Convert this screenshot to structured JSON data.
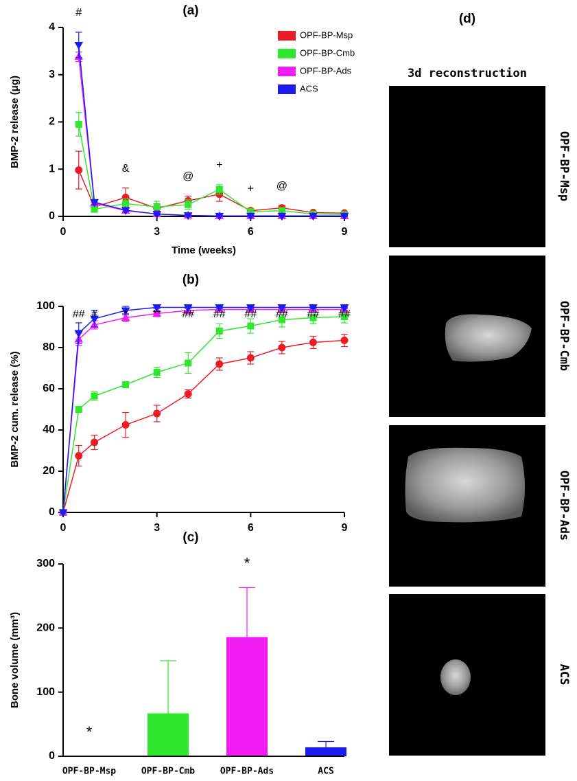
{
  "chart_data": [
    {
      "type": "line",
      "title": "(a)",
      "x_label": "Time (weeks)",
      "y_label": "BMP-2 release (μg)",
      "x": [
        0.5,
        1,
        2,
        3,
        4,
        5,
        6,
        7,
        8,
        9
      ],
      "xlim": [
        0,
        9
      ],
      "xticks": [
        0,
        3,
        6,
        9
      ],
      "ylim": [
        0,
        4
      ],
      "yticks": [
        0,
        1,
        2,
        3,
        4
      ],
      "legend": "upper right",
      "series": [
        {
          "name": "OPF-BP-Msp",
          "color": "#ec1c24",
          "marker": "circle",
          "values": [
            0.98,
            0.2,
            0.4,
            0.17,
            0.33,
            0.47,
            0.12,
            0.18,
            0.08,
            0.07
          ],
          "errors": [
            0.4,
            0.1,
            0.2,
            0.1,
            0.1,
            0.15,
            0.05,
            0.05,
            0.02,
            0.02
          ]
        },
        {
          "name": "OPF-BP-Cmb",
          "color": "#2ee82e",
          "marker": "square",
          "values": [
            1.95,
            0.15,
            0.27,
            0.2,
            0.25,
            0.57,
            0.1,
            0.12,
            0.05,
            0.04
          ],
          "errors": [
            0.25,
            0.05,
            0.1,
            0.12,
            0.1,
            0.1,
            0.05,
            0.05,
            0.02,
            0.02
          ]
        },
        {
          "name": "OPF-BP-Ads",
          "color": "#f21cf2",
          "marker": "triangle-up",
          "values": [
            3.38,
            0.28,
            0.12,
            0.05,
            0.02,
            0.01,
            0.01,
            0.01,
            0.01,
            0.01
          ],
          "errors": [
            0.1,
            0.05,
            0.03,
            0.02,
            0.01,
            0.01,
            0.01,
            0.01,
            0.01,
            0.01
          ]
        },
        {
          "name": "ACS",
          "color": "#1c1cf2",
          "marker": "triangle-down",
          "values": [
            3.63,
            0.3,
            0.13,
            0.05,
            0.02,
            0.01,
            0.01,
            0.01,
            0.01,
            0.01
          ],
          "errors": [
            0.27,
            0.05,
            0.03,
            0.02,
            0.01,
            0.01,
            0.01,
            0.01,
            0.01,
            0.01
          ]
        }
      ],
      "annotations": [
        {
          "text": "#",
          "x": 0.5
        },
        {
          "text": "&",
          "x": 2
        },
        {
          "text": "@",
          "x": 4
        },
        {
          "text": "+",
          "x": 5
        },
        {
          "text": "+",
          "x": 6
        },
        {
          "text": "@",
          "x": 7
        }
      ]
    },
    {
      "type": "line",
      "title": "(b)",
      "y_label": "BMP-2 cum. release (%)",
      "x": [
        0,
        0.5,
        1,
        2,
        3,
        4,
        5,
        6,
        7,
        8,
        9
      ],
      "xlim": [
        0,
        9
      ],
      "xticks": [
        0,
        3,
        6,
        9
      ],
      "ylim": [
        0,
        100
      ],
      "yticks": [
        0,
        20,
        40,
        60,
        80,
        100
      ],
      "series": [
        {
          "color": "#ec1c24",
          "marker": "circle",
          "values": [
            0,
            27.5,
            34,
            42.5,
            48,
            57.5,
            72,
            75,
            80,
            82.5,
            83.5
          ],
          "errors": [
            0,
            5,
            3.5,
            6,
            4,
            2,
            3,
            3,
            3,
            3,
            3
          ]
        },
        {
          "color": "#2ee82e",
          "marker": "square",
          "values": [
            0,
            50,
            56.5,
            62,
            68,
            72.5,
            88,
            90.5,
            93.5,
            94.5,
            95
          ],
          "errors": [
            0,
            1.5,
            2,
            1,
            2.5,
            5,
            3.5,
            3.5,
            3.5,
            3,
            3
          ]
        },
        {
          "color": "#f21cf2",
          "marker": "triangle-up",
          "values": [
            0,
            84,
            91,
            94.5,
            96.5,
            98,
            98.5,
            98.5,
            98.5,
            98.5,
            98.5
          ],
          "errors": [
            0,
            3,
            2,
            2,
            1.5,
            1.5,
            1,
            1,
            1,
            1,
            1
          ]
        },
        {
          "color": "#1c1cf2",
          "marker": "triangle-down",
          "values": [
            0,
            87,
            94,
            98,
            99.5,
            99.5,
            99.5,
            99.5,
            99.5,
            99.5,
            99.5
          ],
          "errors": [
            0,
            5,
            4,
            2,
            0.5,
            0.5,
            0.5,
            0.5,
            0.5,
            0.5,
            0.5
          ]
        }
      ],
      "annotations": [
        {
          "text": "##",
          "x": 0.5
        },
        {
          "text": "#",
          "x": 1
        },
        {
          "text": "*",
          "x": 2
        },
        {
          "text": "**",
          "x": 3
        },
        {
          "text": "##",
          "x": 4
        },
        {
          "text": "##",
          "x": 5
        },
        {
          "text": "##",
          "x": 6
        },
        {
          "text": "##",
          "x": 7
        },
        {
          "text": "##",
          "x": 8
        },
        {
          "text": "##",
          "x": 9
        }
      ]
    },
    {
      "type": "bar",
      "title": "(c)",
      "y_label": "Bone volume (mm³)",
      "categories": [
        "OPF-BP-Msp",
        "OPF-BP-Cmb",
        "OPF-BP-Ads",
        "ACS"
      ],
      "values": [
        0,
        67,
        186,
        14
      ],
      "errors": [
        0,
        82,
        77,
        9
      ],
      "colors": [
        "#ec1c24",
        "#2ee82e",
        "#f21cf2",
        "#1c1cf2"
      ],
      "ylim": [
        0,
        300
      ],
      "yticks": [
        0,
        100,
        200,
        300
      ],
      "annotations": [
        {
          "text": "*",
          "category": 0
        },
        {
          "text": "*",
          "category": 2
        }
      ]
    }
  ],
  "panel_d": {
    "title": "(d)",
    "header": "3d reconstruction",
    "labels": [
      "OPF-BP-Msp",
      "OPF-BP-Cmb",
      "OPF-BP-Ads",
      "ACS"
    ]
  }
}
